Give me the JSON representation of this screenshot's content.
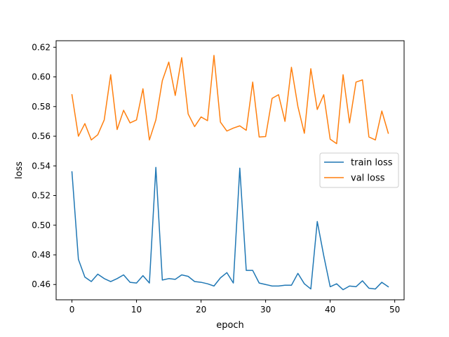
{
  "chart_data": {
    "type": "line",
    "xlabel": "epoch",
    "ylabel": "loss",
    "xlim": [
      -2.45,
      51.45
    ],
    "ylim": [
      0.4497,
      0.6244
    ],
    "xticks": [
      0,
      10,
      20,
      30,
      40,
      50
    ],
    "yticks": [
      0.46,
      0.48,
      0.5,
      0.52,
      0.54,
      0.56,
      0.58,
      0.6,
      0.62
    ],
    "ytick_labels": [
      "0.46",
      "0.48",
      "0.50",
      "0.52",
      "0.54",
      "0.56",
      "0.58",
      "0.60",
      "0.62"
    ],
    "grid": false,
    "legend_position": "center-right",
    "series": [
      {
        "name": "train loss",
        "color": "#1f77b4",
        "x": [
          0,
          1,
          2,
          3,
          4,
          5,
          6,
          7,
          8,
          9,
          10,
          11,
          12,
          13,
          14,
          15,
          16,
          17,
          18,
          19,
          20,
          21,
          22,
          23,
          24,
          25,
          26,
          27,
          28,
          29,
          30,
          31,
          32,
          33,
          34,
          35,
          36,
          37,
          38,
          39,
          40,
          41,
          42,
          43,
          44,
          45,
          46,
          47,
          48,
          49
        ],
        "values": [
          0.536,
          0.477,
          0.465,
          0.462,
          0.467,
          0.464,
          0.462,
          0.464,
          0.4665,
          0.4615,
          0.461,
          0.466,
          0.461,
          0.539,
          0.463,
          0.464,
          0.4635,
          0.4665,
          0.4655,
          0.462,
          0.4615,
          0.4605,
          0.459,
          0.4645,
          0.468,
          0.461,
          0.5385,
          0.4695,
          0.4695,
          0.461,
          0.46,
          0.459,
          0.459,
          0.4595,
          0.4595,
          0.4675,
          0.4605,
          0.457,
          0.5025,
          0.4795,
          0.4585,
          0.4605,
          0.4565,
          0.459,
          0.4585,
          0.4625,
          0.4575,
          0.457,
          0.4615,
          0.4585
        ]
      },
      {
        "name": "val loss",
        "color": "#ff7f0e",
        "x": [
          0,
          1,
          2,
          3,
          4,
          5,
          6,
          7,
          8,
          9,
          10,
          11,
          12,
          13,
          14,
          15,
          16,
          17,
          18,
          19,
          20,
          21,
          22,
          23,
          24,
          25,
          26,
          27,
          28,
          29,
          30,
          31,
          32,
          33,
          34,
          35,
          36,
          37,
          38,
          39,
          40,
          41,
          42,
          43,
          44,
          45,
          46,
          47,
          48,
          49
        ],
        "values": [
          0.588,
          0.56,
          0.5685,
          0.5575,
          0.561,
          0.571,
          0.6015,
          0.5645,
          0.5775,
          0.569,
          0.571,
          0.592,
          0.5575,
          0.571,
          0.5975,
          0.61,
          0.5875,
          0.613,
          0.575,
          0.5665,
          0.573,
          0.5705,
          0.6145,
          0.5695,
          0.5635,
          0.5655,
          0.567,
          0.564,
          0.5965,
          0.5595,
          0.5598,
          0.5855,
          0.588,
          0.57,
          0.6065,
          0.58,
          0.562,
          0.6055,
          0.578,
          0.588,
          0.558,
          0.555,
          0.6015,
          0.569,
          0.5965,
          0.598,
          0.5595,
          0.5575,
          0.577,
          0.562
        ]
      }
    ]
  }
}
